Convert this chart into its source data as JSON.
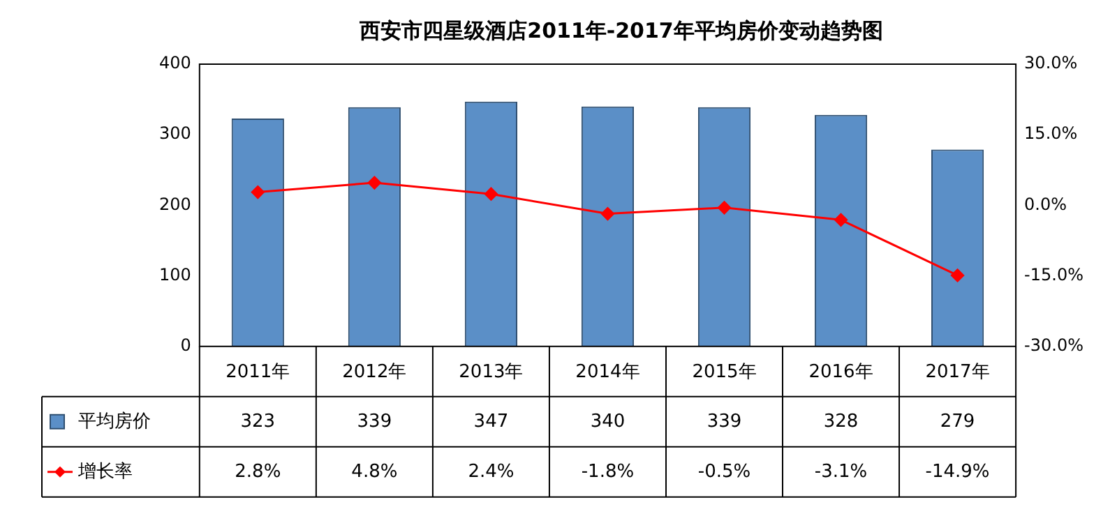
{
  "chart_data": {
    "type": "bar",
    "title": "西安市四星级酒店2011年-2017年平均房价变动趋势图",
    "categories": [
      "2011年",
      "2012年",
      "2013年",
      "2014年",
      "2015年",
      "2016年",
      "2017年"
    ],
    "series": [
      {
        "name": "平均房价",
        "color": "#5b8fc7",
        "values": [
          323,
          339,
          347,
          340,
          339,
          328,
          279
        ],
        "value_labels": [
          "323",
          "339",
          "347",
          "340",
          "339",
          "328",
          "279"
        ]
      },
      {
        "name": "增长率",
        "type": "line",
        "axis": "y2",
        "color": "#ff0000",
        "marker": "diamond",
        "line_style": "solid",
        "values": [
          2.8,
          4.8,
          2.4,
          -1.8,
          -0.5,
          -3.1,
          -14.9
        ],
        "value_labels": [
          "2.8%",
          "4.8%",
          "2.4%",
          "-1.8%",
          "-0.5%",
          "-3.1%",
          "-14.9%"
        ]
      }
    ],
    "ylim": [
      0,
      400
    ],
    "yticks": [
      0,
      100,
      200,
      300,
      400
    ],
    "y2lim": [
      -30,
      30
    ],
    "y2ticks": [
      {
        "value": -30,
        "label": "-30.0%"
      },
      {
        "value": -15,
        "label": "-15.0%"
      },
      {
        "value": 0,
        "label": "0.0%"
      },
      {
        "value": 15,
        "label": "15.0%"
      },
      {
        "value": 30,
        "label": "30.0%"
      }
    ],
    "grid": false,
    "legend": "bottom"
  }
}
